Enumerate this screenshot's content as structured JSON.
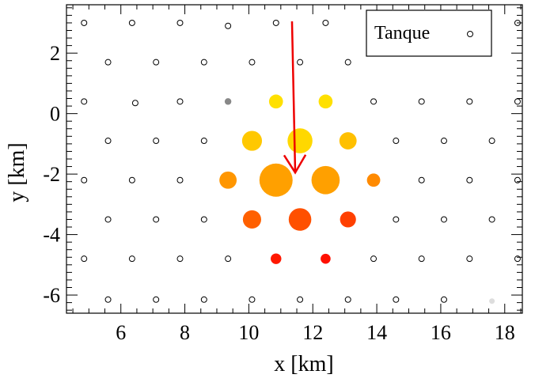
{
  "chart_data": {
    "type": "scatter",
    "title": "",
    "xlabel": "x [km]",
    "ylabel": "y [km]",
    "xlim": [
      4.3,
      18.55
    ],
    "ylim": [
      -6.6,
      3.6
    ],
    "xticks": [
      6,
      8,
      10,
      12,
      14,
      16,
      18
    ],
    "yticks": [
      2,
      0,
      -2,
      -4,
      -6
    ],
    "grid": false,
    "legend": {
      "position": "top-right",
      "entries": [
        "Tanque"
      ]
    },
    "series": [
      {
        "name": "Tanque",
        "marker": "open-circle",
        "points": [
          [
            4.85,
            3.0
          ],
          [
            6.35,
            3.0
          ],
          [
            7.85,
            3.0
          ],
          [
            9.35,
            2.9
          ],
          [
            10.85,
            3.0
          ],
          [
            12.4,
            3.0
          ],
          [
            18.4,
            3.0
          ],
          [
            5.6,
            1.7
          ],
          [
            7.1,
            1.7
          ],
          [
            8.6,
            1.7
          ],
          [
            10.1,
            1.7
          ],
          [
            11.6,
            1.7
          ],
          [
            13.1,
            1.7
          ],
          [
            4.85,
            0.4
          ],
          [
            6.45,
            0.35
          ],
          [
            7.85,
            0.4
          ],
          [
            13.9,
            0.4
          ],
          [
            15.4,
            0.4
          ],
          [
            16.9,
            0.4
          ],
          [
            18.4,
            0.4
          ],
          [
            5.6,
            -0.9
          ],
          [
            7.1,
            -0.9
          ],
          [
            8.6,
            -0.9
          ],
          [
            14.6,
            -0.9
          ],
          [
            16.1,
            -0.9
          ],
          [
            17.6,
            -0.9
          ],
          [
            4.85,
            -2.2
          ],
          [
            6.35,
            -2.2
          ],
          [
            7.85,
            -2.2
          ],
          [
            15.4,
            -2.2
          ],
          [
            16.9,
            -2.2
          ],
          [
            18.4,
            -2.2
          ],
          [
            5.6,
            -3.5
          ],
          [
            7.1,
            -3.5
          ],
          [
            8.6,
            -3.5
          ],
          [
            14.6,
            -3.5
          ],
          [
            16.1,
            -3.5
          ],
          [
            17.6,
            -3.5
          ],
          [
            4.85,
            -4.8
          ],
          [
            6.35,
            -4.8
          ],
          [
            7.85,
            -4.8
          ],
          [
            9.35,
            -4.8
          ],
          [
            13.9,
            -4.8
          ],
          [
            15.4,
            -4.8
          ],
          [
            16.9,
            -4.8
          ],
          [
            18.4,
            -4.8
          ],
          [
            5.6,
            -6.15
          ],
          [
            7.1,
            -6.15
          ],
          [
            8.6,
            -6.15
          ],
          [
            10.1,
            -6.15
          ],
          [
            11.6,
            -6.15
          ],
          [
            13.1,
            -6.15
          ],
          [
            14.6,
            -6.15
          ],
          [
            16.1,
            -6.15
          ]
        ]
      },
      {
        "name": "",
        "marker": "filled-circle",
        "points": [
          {
            "x": 9.35,
            "y": 0.4,
            "size": 0.2,
            "color": "#888888"
          },
          {
            "x": 17.6,
            "y": -6.2,
            "size": 0.15,
            "color": "#dddddd"
          },
          {
            "x": 10.85,
            "y": 0.4,
            "size": 0.42,
            "color": "#ffe000"
          },
          {
            "x": 12.4,
            "y": 0.4,
            "size": 0.42,
            "color": "#ffe000"
          },
          {
            "x": 10.1,
            "y": -0.9,
            "size": 0.6,
            "color": "#ffc800"
          },
          {
            "x": 11.6,
            "y": -0.9,
            "size": 0.75,
            "color": "#ffd800"
          },
          {
            "x": 13.1,
            "y": -0.9,
            "size": 0.52,
            "color": "#ffc000"
          },
          {
            "x": 9.35,
            "y": -2.2,
            "size": 0.52,
            "color": "#ff9600"
          },
          {
            "x": 10.85,
            "y": -2.2,
            "size": 1.0,
            "color": "#ffa000"
          },
          {
            "x": 12.4,
            "y": -2.2,
            "size": 0.85,
            "color": "#ffa000"
          },
          {
            "x": 13.9,
            "y": -2.2,
            "size": 0.4,
            "color": "#ff8a00"
          },
          {
            "x": 10.1,
            "y": -3.5,
            "size": 0.55,
            "color": "#ff6000"
          },
          {
            "x": 11.6,
            "y": -3.5,
            "size": 0.68,
            "color": "#ff5000"
          },
          {
            "x": 13.1,
            "y": -3.5,
            "size": 0.48,
            "color": "#ff4000"
          },
          {
            "x": 10.85,
            "y": -4.8,
            "size": 0.32,
            "color": "#ff1800"
          },
          {
            "x": 12.4,
            "y": -4.8,
            "size": 0.3,
            "color": "#ff1000"
          }
        ]
      }
    ],
    "arrow": {
      "from": [
        11.35,
        3.05
      ],
      "to": [
        11.45,
        -1.95
      ],
      "color": "#ee0000"
    }
  }
}
